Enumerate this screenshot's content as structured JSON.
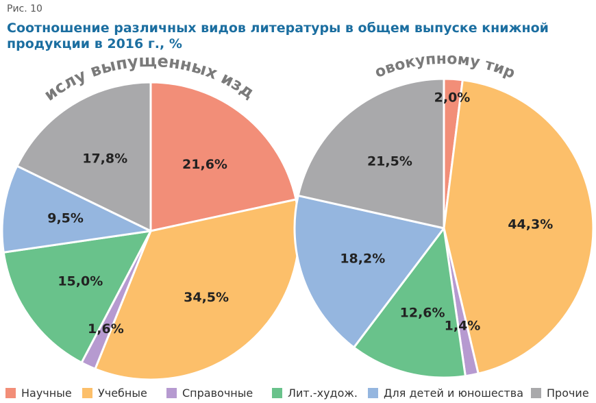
{
  "figure_label": "Рис. 10",
  "title": "Соотношение различных видов литературы в общем выпуске книжной продукции в 2016 г., %",
  "chart_data": [
    {
      "type": "pie",
      "title": "По числу выпущенных изданий",
      "labels": [
        "Научные",
        "Учебные",
        "Справочные",
        "Лит.-худож.",
        "Для детей и юношества",
        "Прочие"
      ],
      "values": [
        21.6,
        34.5,
        1.6,
        15.0,
        9.5,
        17.8
      ],
      "value_labels": [
        "21,6%",
        "34,5%",
        "1,6%",
        "15,0%",
        "9,5%",
        "17,8%"
      ]
    },
    {
      "type": "pie",
      "title": "По совокупному тиражу",
      "labels": [
        "Научные",
        "Учебные",
        "Справочные",
        "Лит.-худож.",
        "Для детей и юношества",
        "Прочие"
      ],
      "values": [
        2.0,
        44.3,
        1.4,
        12.6,
        18.2,
        21.5
      ],
      "value_labels": [
        "2,0%",
        "44,3%",
        "1,4%",
        "12,6%",
        "18,2%",
        "21,5%"
      ]
    }
  ],
  "colors": [
    "#f28e78",
    "#fcbf6a",
    "#b69ad0",
    "#69c28b",
    "#95b6df",
    "#a9a9ab"
  ],
  "legend": [
    {
      "label": "Научные",
      "color": "#f28e78"
    },
    {
      "label": "Учебные",
      "color": "#fcbf6a"
    },
    {
      "label": "Справочные",
      "color": "#b69ad0"
    },
    {
      "label": "Лит.-худож.",
      "color": "#69c28b"
    },
    {
      "label": "Для детей и юношества",
      "color": "#95b6df"
    },
    {
      "label": "Прочие",
      "color": "#a9a9ab"
    }
  ]
}
